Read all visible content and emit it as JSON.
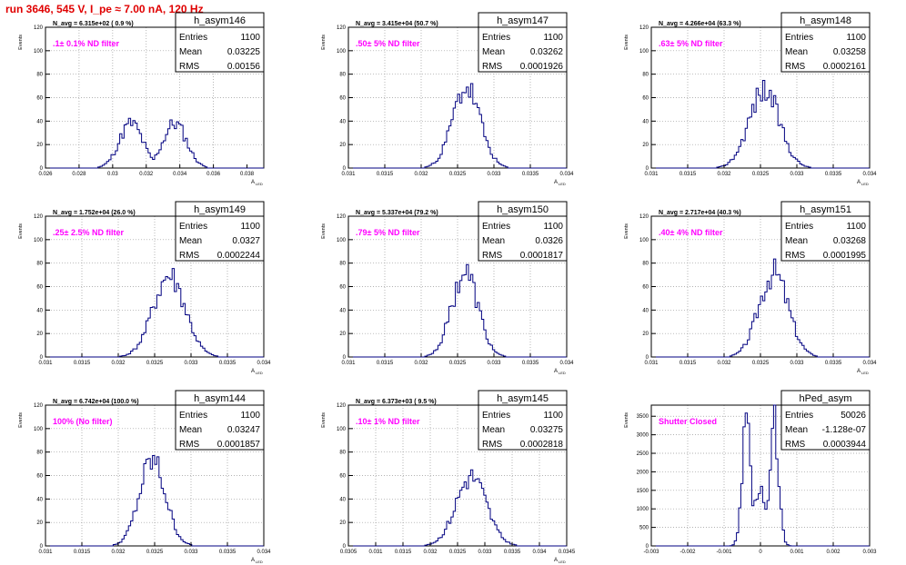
{
  "run_title": "run 3646,   545 V, I_pe ≈ 7.00 nA, 120 Hz",
  "colors": {
    "title": "#e00000",
    "annotation": "#ff00ff",
    "histogram": "#000080",
    "grid": "#999999"
  },
  "chart_data": [
    {
      "type": "bar",
      "name": "h_asym146",
      "navg": "N_avg = 6.315e+02 ( 0.9 %)",
      "note": ".1± 0.1% ND filter",
      "stats": [
        [
          "Entries",
          "1100"
        ],
        [
          "Mean",
          "0.03225"
        ],
        [
          "RMS",
          "0.00156"
        ]
      ],
      "xlim": [
        0.026,
        0.039
      ],
      "xticks": [
        "0.026",
        "0.028",
        "0.03",
        "0.032",
        "0.034",
        "0.036",
        "0.038"
      ],
      "xtickvals": [
        0.026,
        0.028,
        0.03,
        0.032,
        0.034,
        0.036,
        0.038
      ],
      "ylim": [
        0,
        120
      ],
      "yticks": [
        0,
        20,
        40,
        60,
        80,
        100,
        120
      ],
      "xlabel": "A",
      "xlabel_sub": "LED",
      "ylabel": "Events",
      "dist": {
        "kind": "double",
        "mu1": 0.0311,
        "mu2": 0.0337,
        "s1": 0.0007,
        "s2": 0.0007,
        "peak": 40,
        "seed": 11
      }
    },
    {
      "type": "bar",
      "name": "h_asym147",
      "navg": "N_avg = 3.415e+04 (50.7 %)",
      "note": ".50± 5% ND filter",
      "stats": [
        [
          "Entries",
          "1100"
        ],
        [
          "Mean",
          "0.03262"
        ],
        [
          "RMS",
          "0.0001926"
        ]
      ],
      "xlim": [
        0.031,
        0.034
      ],
      "xticks": [
        "0.031",
        "0.0315",
        "0.032",
        "0.0325",
        "0.033",
        "0.0335",
        "0.034"
      ],
      "xtickvals": [
        0.031,
        0.0315,
        0.032,
        0.0325,
        0.033,
        0.0335,
        0.034
      ],
      "ylim": [
        0,
        120
      ],
      "yticks": [
        0,
        20,
        40,
        60,
        80,
        100,
        120
      ],
      "xlabel": "A",
      "xlabel_sub": "LED",
      "ylabel": "Events",
      "dist": {
        "kind": "single",
        "mu1": 0.03262,
        "s1": 0.00019,
        "peak": 72,
        "seed": 23
      }
    },
    {
      "type": "bar",
      "name": "h_asym148",
      "navg": "N_avg = 4.266e+04 (63.3 %)",
      "note": ".63± 5% ND filter",
      "stats": [
        [
          "Entries",
          "1100"
        ],
        [
          "Mean",
          "0.03258"
        ],
        [
          "RMS",
          "0.0002161"
        ]
      ],
      "xlim": [
        0.031,
        0.034
      ],
      "xticks": [
        "0.031",
        "0.0315",
        "0.032",
        "0.0325",
        "0.033",
        "0.0335",
        "0.034"
      ],
      "xtickvals": [
        0.031,
        0.0315,
        0.032,
        0.0325,
        0.033,
        0.0335,
        0.034
      ],
      "ylim": [
        0,
        120
      ],
      "yticks": [
        0,
        20,
        40,
        60,
        80,
        100,
        120
      ],
      "xlabel": "A",
      "xlabel_sub": "LED",
      "ylabel": "Events",
      "dist": {
        "kind": "single",
        "mu1": 0.03255,
        "s1": 0.00021,
        "peak": 70,
        "seed": 37
      }
    },
    {
      "type": "bar",
      "name": "h_asym149",
      "navg": "N_avg = 1.752e+04 (26.0 %)",
      "note": ".25± 2.5% ND filter",
      "stats": [
        [
          "Entries",
          "1100"
        ],
        [
          "Mean",
          "0.0327"
        ],
        [
          "RMS",
          "0.0002244"
        ]
      ],
      "xlim": [
        0.031,
        0.034
      ],
      "xticks": [
        "0.031",
        "0.0315",
        "0.032",
        "0.0325",
        "0.033",
        "0.0335",
        "0.034"
      ],
      "xtickvals": [
        0.031,
        0.0315,
        0.032,
        0.0325,
        0.033,
        0.0335,
        0.034
      ],
      "ylim": [
        0,
        120
      ],
      "yticks": [
        0,
        20,
        40,
        60,
        80,
        100,
        120
      ],
      "xlabel": "A",
      "xlabel_sub": "LED",
      "ylabel": "Events",
      "dist": {
        "kind": "single",
        "mu1": 0.0327,
        "s1": 0.00022,
        "peak": 72,
        "seed": 41
      }
    },
    {
      "type": "bar",
      "name": "h_asym150",
      "navg": "N_avg = 5.337e+04 (79.2 %)",
      "note": ".79± 5% ND filter",
      "stats": [
        [
          "Entries",
          "1100"
        ],
        [
          "Mean",
          "0.0326"
        ],
        [
          "RMS",
          "0.0001817"
        ]
      ],
      "xlim": [
        0.031,
        0.034
      ],
      "xticks": [
        "0.031",
        "0.0315",
        "0.032",
        "0.0325",
        "0.033",
        "0.0335",
        "0.034"
      ],
      "xtickvals": [
        0.031,
        0.0315,
        0.032,
        0.0325,
        0.033,
        0.0335,
        0.034
      ],
      "ylim": [
        0,
        120
      ],
      "yticks": [
        0,
        20,
        40,
        60,
        80,
        100,
        120
      ],
      "xlabel": "A",
      "xlabel_sub": "LED",
      "ylabel": "Events",
      "dist": {
        "kind": "single",
        "mu1": 0.0326,
        "s1": 0.00018,
        "peak": 76,
        "seed": 53
      }
    },
    {
      "type": "bar",
      "name": "h_asym151",
      "navg": "N_avg = 2.717e+04 (40.3 %)",
      "note": ".40± 4% ND filter",
      "stats": [
        [
          "Entries",
          "1100"
        ],
        [
          "Mean",
          "0.03268"
        ],
        [
          "RMS",
          "0.0001995"
        ]
      ],
      "xlim": [
        0.031,
        0.034
      ],
      "xticks": [
        "0.031",
        "0.0315",
        "0.032",
        "0.0325",
        "0.033",
        "0.0335",
        "0.034"
      ],
      "xtickvals": [
        0.031,
        0.0315,
        0.032,
        0.0325,
        0.033,
        0.0335,
        0.034
      ],
      "ylim": [
        0,
        120
      ],
      "yticks": [
        0,
        20,
        40,
        60,
        80,
        100,
        120
      ],
      "xlabel": "A",
      "xlabel_sub": "LED",
      "ylabel": "Events",
      "dist": {
        "kind": "single",
        "mu1": 0.03268,
        "s1": 0.0002,
        "peak": 76,
        "seed": 67
      }
    },
    {
      "type": "bar",
      "name": "h_asym144",
      "navg": "N_avg = 6.742e+04 (100.0 %)",
      "note": "100% (No filter)",
      "stats": [
        [
          "Entries",
          "1100"
        ],
        [
          "Mean",
          "0.03247"
        ],
        [
          "RMS",
          "0.0001857"
        ]
      ],
      "xlim": [
        0.031,
        0.034
      ],
      "xticks": [
        "0.031",
        "0.0315",
        "0.032",
        "0.0325",
        "0.033",
        "0.0335",
        "0.034"
      ],
      "xtickvals": [
        0.031,
        0.0315,
        0.032,
        0.0325,
        0.033,
        0.0335,
        0.034
      ],
      "ylim": [
        0,
        120
      ],
      "yticks": [
        0,
        20,
        40,
        60,
        80,
        100,
        120
      ],
      "xlabel": "A",
      "xlabel_sub": "LED",
      "ylabel": "Events",
      "dist": {
        "kind": "single",
        "mu1": 0.03247,
        "s1": 0.00018,
        "peak": 76,
        "seed": 79
      }
    },
    {
      "type": "bar",
      "name": "h_asym145",
      "navg": "N_avg = 6.373e+03 ( 9.5 %)",
      "note": ".10± 1% ND filter",
      "stats": [
        [
          "Entries",
          "1100"
        ],
        [
          "Mean",
          "0.03275"
        ],
        [
          "RMS",
          "0.0002818"
        ]
      ],
      "xlim": [
        0.0305,
        0.0345
      ],
      "xticks": [
        "0.0305",
        "0.031",
        "0.0315",
        "0.032",
        "0.0325",
        "0.033",
        "0.0335",
        "0.034",
        "0.0345"
      ],
      "xtickvals": [
        0.0305,
        0.031,
        0.0315,
        0.032,
        0.0325,
        0.033,
        0.0335,
        0.034,
        0.0345
      ],
      "ylim": [
        0,
        120
      ],
      "yticks": [
        0,
        20,
        40,
        60,
        80,
        100,
        120
      ],
      "xlabel": "A",
      "xlabel_sub": "LED",
      "ylabel": "Events",
      "dist": {
        "kind": "single",
        "mu1": 0.03275,
        "s1": 0.00028,
        "peak": 62,
        "seed": 83
      }
    },
    {
      "type": "bar",
      "name": "hPed_asym",
      "navg": "",
      "note": "Shutter Closed",
      "stats": [
        [
          "Entries",
          "50026"
        ],
        [
          "Mean",
          "-1.128e-07"
        ],
        [
          "RMS",
          "0.0003944"
        ]
      ],
      "xlim": [
        -0.003,
        0.003
      ],
      "xticks": [
        "-0.003",
        "-0.002",
        "-0.001",
        "0",
        "0.001",
        "0.002",
        "0.003"
      ],
      "xtickvals": [
        -0.003,
        -0.002,
        -0.001,
        0,
        0.001,
        0.002,
        0.003
      ],
      "ylim": [
        0,
        3800
      ],
      "yticks": [
        0,
        500,
        1000,
        1500,
        2000,
        2500,
        3000,
        3500
      ],
      "xlabel": "",
      "xlabel_sub": "",
      "ylabel": "Events",
      "dist": {
        "kind": "double",
        "mu1": -0.00038,
        "mu2": 0.00038,
        "s1": 0.00012,
        "s2": 0.00012,
        "peak": 3550,
        "seed": 97,
        "valley": 0.42
      }
    }
  ]
}
